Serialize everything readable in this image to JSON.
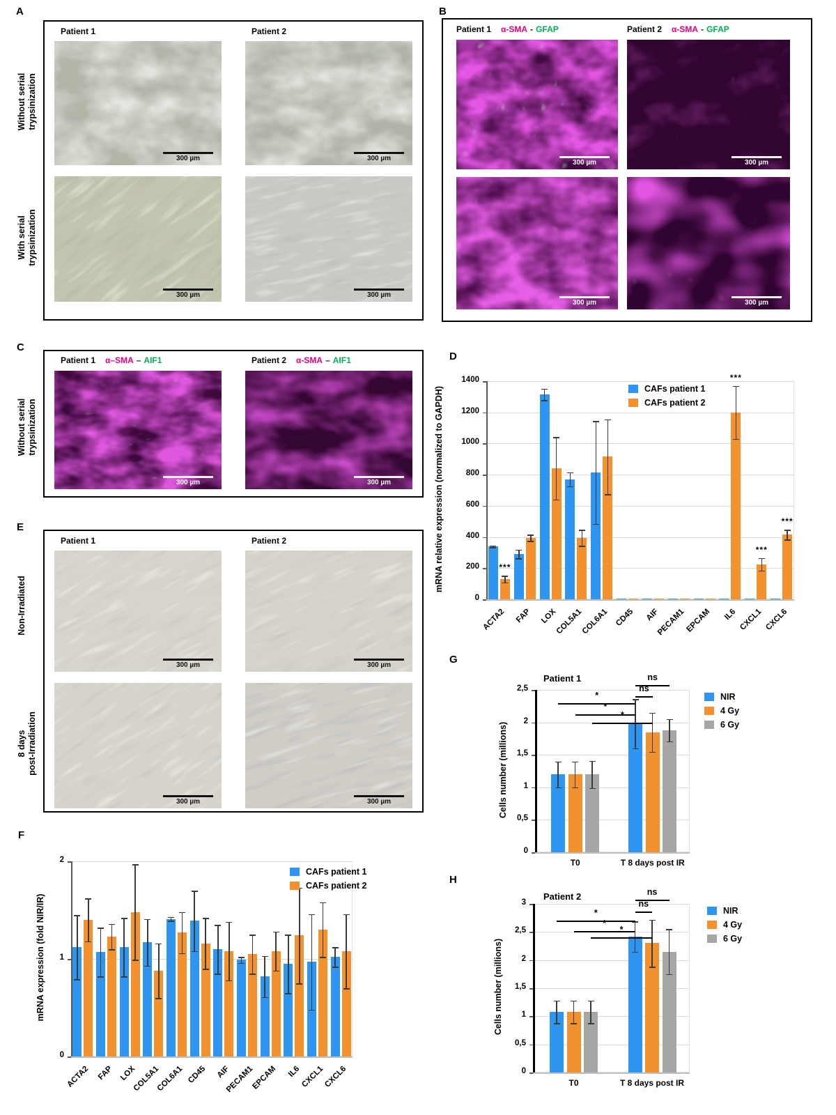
{
  "figure": {
    "scale_bar": "300 µm",
    "colors": {
      "series_blue": "#2e96f0",
      "series_orange": "#f2912d",
      "series_gray": "#a6a6a6",
      "stain_magenta": "#e6007e",
      "stain_green": "#00b050"
    }
  },
  "panels": {
    "A": {
      "label": "A",
      "columns": [
        "Patient 1",
        "Patient 2"
      ],
      "rows": [
        "Without serial\ntrypsinization",
        "With serial\ntrypsinization"
      ]
    },
    "B": {
      "label": "B",
      "columns": [
        {
          "patient": "Patient 1",
          "stain_a": "α-SMA",
          "sep": "-",
          "stain_b": "GFAP"
        },
        {
          "patient": "Patient 2",
          "stain_a": "α-SMA",
          "sep": "-",
          "stain_b": "GFAP"
        }
      ]
    },
    "C": {
      "label": "C",
      "row": "Without serial\ntrypsinization",
      "columns": [
        {
          "patient": "Patient 1",
          "stain_a": "α–SMA",
          "sep": "–",
          "stain_b": "AIF1"
        },
        {
          "patient": "Patient 2",
          "stain_a": "α-SMA",
          "sep": "–",
          "stain_b": "AIF1"
        }
      ]
    },
    "D": {
      "label": "D"
    },
    "E": {
      "label": "E",
      "columns": [
        "Patient 1",
        "Patient 2"
      ],
      "rows": [
        "Non-Irradiated",
        "8 days\npost-Irradiation"
      ]
    },
    "F": {
      "label": "F"
    },
    "G": {
      "label": "G"
    },
    "H": {
      "label": "H"
    }
  },
  "chart_data": [
    {
      "id": "D",
      "type": "bar",
      "title": "",
      "ylabel": "mRNA relative expression  (normalized to GAPDH)",
      "xlabel": "",
      "ylim": [
        0,
        1400
      ],
      "grid": true,
      "legend_position": "inner-top-right",
      "yticks": [
        {
          "v": 0,
          "label": "0"
        },
        {
          "v": 200,
          "label": "200"
        },
        {
          "v": 400,
          "label": "400"
        },
        {
          "v": 600,
          "label": "600"
        },
        {
          "v": 800,
          "label": "800"
        },
        {
          "v": 1000,
          "label": "1000"
        },
        {
          "v": 1200,
          "label": "1200"
        },
        {
          "v": 1400,
          "label": "1400"
        }
      ],
      "categories": [
        "ACTA2",
        "FAP",
        "LOX",
        "COL5A1",
        "COL6A1",
        "CD45",
        "AIF",
        "PECAM1",
        "EPCAM",
        "IL6",
        "CXCL1",
        "CXCL6"
      ],
      "series": [
        {
          "name": "CAFs patient 1",
          "color": "#2e96f0",
          "values": [
            340,
            290,
            1315,
            770,
            815,
            3,
            6,
            4,
            5,
            5,
            5,
            5
          ],
          "errors": [
            6,
            28,
            38,
            45,
            330,
            0,
            0,
            0,
            0,
            0,
            0,
            0
          ],
          "sig": [
            null,
            null,
            null,
            null,
            null,
            null,
            null,
            null,
            null,
            null,
            null,
            null
          ]
        },
        {
          "name": "CAFs patient 2",
          "color": "#f2912d",
          "values": [
            130,
            395,
            840,
            395,
            915,
            3,
            6,
            3,
            5,
            1200,
            225,
            415
          ],
          "errors": [
            22,
            20,
            200,
            52,
            240,
            0,
            0,
            0,
            0,
            170,
            40,
            32
          ],
          "sig": [
            "***",
            null,
            null,
            null,
            null,
            null,
            null,
            null,
            null,
            "***",
            "***",
            "***"
          ]
        }
      ],
      "annotations": []
    },
    {
      "id": "F",
      "type": "bar",
      "title": "",
      "ylabel": "mRNA expression  (fold NIR/IR)",
      "xlabel": "",
      "ylim": [
        0,
        2
      ],
      "grid": true,
      "legend_position": "inner-top-right",
      "yticks": [
        {
          "v": 0,
          "label": "0"
        },
        {
          "v": 1,
          "label": "1"
        },
        {
          "v": 2,
          "label": "2"
        }
      ],
      "categories": [
        "ACTA2",
        "FAP",
        "LOX",
        "COL5A1",
        "COL6A1",
        "CD45",
        "AIF",
        "PECAM1",
        "EPCAM",
        "IL6",
        "CXCL1",
        "CXCL6"
      ],
      "series": [
        {
          "name": "CAFs patient 1",
          "color": "#2e96f0",
          "values": [
            1.12,
            1.07,
            1.12,
            1.17,
            1.41,
            1.39,
            1.1,
            0.99,
            0.82,
            0.95,
            0.97,
            1.02
          ],
          "errors": [
            0.33,
            0.25,
            0.3,
            0.24,
            0.02,
            0.31,
            0.25,
            0.03,
            0.21,
            0.3,
            0.49,
            0.1
          ],
          "sig": [
            null,
            null,
            null,
            null,
            null,
            null,
            null,
            null,
            null,
            null,
            null,
            null
          ]
        },
        {
          "name": "CAFs patient 2",
          "color": "#f2912d",
          "values": [
            1.4,
            1.23,
            1.48,
            0.88,
            1.27,
            1.16,
            1.08,
            1.05,
            1.08,
            1.24,
            1.3,
            1.08
          ],
          "errors": [
            0.22,
            0.13,
            0.49,
            0.28,
            0.21,
            0.26,
            0.3,
            0.2,
            0.2,
            0.49,
            0.28,
            0.38
          ],
          "sig": [
            null,
            null,
            null,
            null,
            null,
            null,
            null,
            null,
            null,
            null,
            null,
            null
          ]
        }
      ],
      "annotations": []
    },
    {
      "id": "G",
      "type": "bar",
      "title": "Patient 1",
      "ylabel": "Cells number (millions)",
      "xlabel": "",
      "ylim": [
        0,
        2.5
      ],
      "grid": true,
      "legend_position": "outer-right",
      "yticks": [
        {
          "v": 0,
          "label": "0"
        },
        {
          "v": 0.5,
          "label": "0,5"
        },
        {
          "v": 1,
          "label": "1"
        },
        {
          "v": 1.5,
          "label": "1,5"
        },
        {
          "v": 2,
          "label": "2"
        },
        {
          "v": 2.5,
          "label": "2,5"
        }
      ],
      "categories": [
        "T0",
        "T 8 days post IR"
      ],
      "series": [
        {
          "name": "NIR",
          "color": "#2e96f0",
          "values": [
            1.2,
            1.98
          ],
          "errors": [
            0.2,
            0.38
          ],
          "sig": [
            null,
            null
          ]
        },
        {
          "name": "4 Gy",
          "color": "#f2912d",
          "values": [
            1.2,
            1.85
          ],
          "errors": [
            0.2,
            0.3
          ],
          "sig": [
            null,
            null
          ]
        },
        {
          "name": "6 Gy",
          "color": "#a6a6a6",
          "values": [
            1.2,
            1.88
          ],
          "errors": [
            0.21,
            0.17
          ],
          "sig": [
            null,
            null
          ]
        }
      ],
      "annotations": [
        {
          "label": "ns",
          "from": [
            1,
            0
          ],
          "to": [
            1,
            2
          ],
          "y": 2.57
        },
        {
          "label": "ns",
          "from": [
            1,
            0
          ],
          "to": [
            1,
            1
          ],
          "y": 2.4
        },
        {
          "label": "*",
          "from": [
            0,
            0
          ],
          "to": [
            1,
            0
          ],
          "y": 2.3
        },
        {
          "label": "*",
          "from": [
            0,
            1
          ],
          "to": [
            1,
            0
          ],
          "y": 2.12
        },
        {
          "label": "*",
          "from": [
            0,
            2
          ],
          "to": [
            1,
            1
          ],
          "y": 2.0
        }
      ]
    },
    {
      "id": "H",
      "type": "bar",
      "title": "Patient 2",
      "ylabel": "Cells number (millions)",
      "xlabel": "",
      "ylim": [
        0,
        3
      ],
      "grid": true,
      "legend_position": "outer-right",
      "yticks": [
        {
          "v": 0,
          "label": "0"
        },
        {
          "v": 0.5,
          "label": "0,5"
        },
        {
          "v": 1,
          "label": "1"
        },
        {
          "v": 1.5,
          "label": "1,5"
        },
        {
          "v": 2,
          "label": "2"
        },
        {
          "v": 2.5,
          "label": "2,5"
        },
        {
          "v": 3,
          "label": "3"
        }
      ],
      "categories": [
        "T0",
        "T 8 days post IR"
      ],
      "series": [
        {
          "name": "NIR",
          "color": "#2e96f0",
          "values": [
            1.08,
            2.42
          ],
          "errors": [
            0.2,
            0.27
          ],
          "sig": [
            null,
            null
          ]
        },
        {
          "name": "4 Gy",
          "color": "#f2912d",
          "values": [
            1.08,
            2.3
          ],
          "errors": [
            0.2,
            0.42
          ],
          "sig": [
            null,
            null
          ]
        },
        {
          "name": "6 Gy",
          "color": "#a6a6a6",
          "values": [
            1.08,
            2.15
          ],
          "errors": [
            0.2,
            0.4
          ],
          "sig": [
            null,
            null
          ]
        }
      ],
      "annotations": [
        {
          "label": "ns",
          "from": [
            1,
            0
          ],
          "to": [
            1,
            2
          ],
          "y": 3.07
        },
        {
          "label": "ns",
          "from": [
            1,
            0
          ],
          "to": [
            1,
            1
          ],
          "y": 2.86
        },
        {
          "label": "*",
          "from": [
            0,
            0
          ],
          "to": [
            1,
            0
          ],
          "y": 2.7
        },
        {
          "label": "*",
          "from": [
            0,
            1
          ],
          "to": [
            1,
            0
          ],
          "y": 2.52
        },
        {
          "label": "*",
          "from": [
            0,
            2
          ],
          "to": [
            1,
            1
          ],
          "y": 2.4
        }
      ]
    }
  ]
}
